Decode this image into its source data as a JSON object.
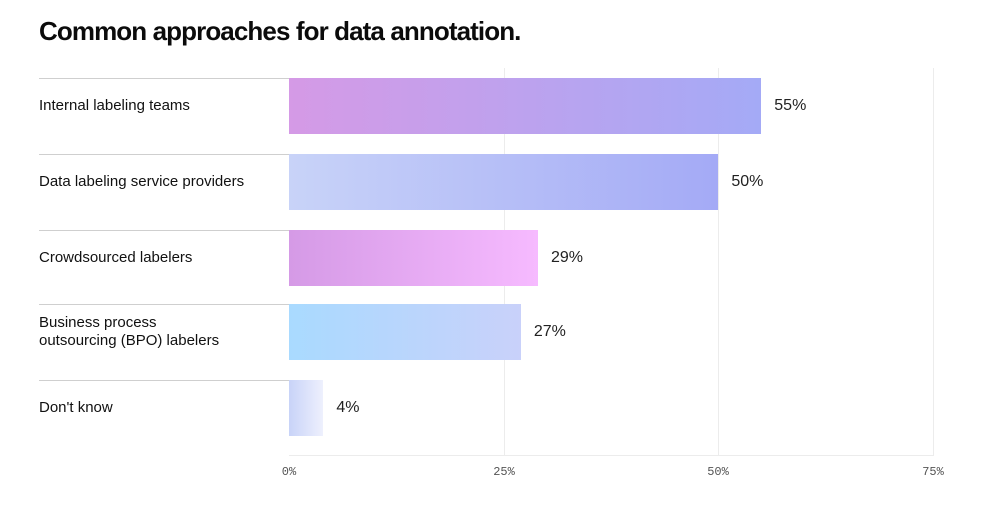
{
  "chart_data": {
    "type": "bar",
    "orientation": "horizontal",
    "title": "Common approaches for data annotation.",
    "xlabel": "",
    "ylabel": "",
    "xlim": [
      0,
      75
    ],
    "grid": true,
    "categories": [
      "Internal labeling teams",
      "Data labeling service providers",
      "Crowdsourced labelers",
      "Business process\noutsourcing (BPO) labelers",
      "Don't know"
    ],
    "values": [
      55,
      50,
      29,
      27,
      4
    ],
    "value_labels": [
      "55%",
      "50%",
      "29%",
      "27%",
      "4%"
    ],
    "ticks": [
      {
        "value": 0,
        "label": "0%"
      },
      {
        "value": 25,
        "label": "25%"
      },
      {
        "value": 50,
        "label": "50%"
      },
      {
        "value": 75,
        "label": "75%"
      }
    ],
    "bar_gradients": [
      [
        "#d59ae6",
        "#a4aaf6"
      ],
      [
        "#c8d3f8",
        "#a4aaf6"
      ],
      [
        "#d59ae6",
        "#f6baff"
      ],
      [
        "#a9daff",
        "#c9d1fa"
      ],
      [
        "#c8d3f8",
        "#eef0fd"
      ]
    ]
  }
}
